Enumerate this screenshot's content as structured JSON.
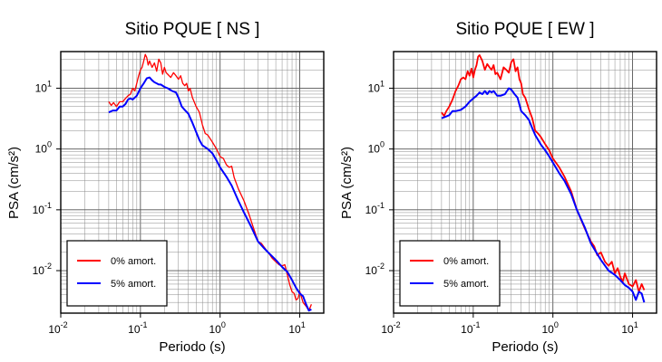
{
  "chart_data": [
    {
      "type": "line",
      "title": "Sitio PQUE [ NS ]",
      "xlabel": "Periodo (s)",
      "ylabel": "PSA (cm/s²)",
      "xscale": "log",
      "yscale": "log",
      "xlim": [
        0.01,
        20
      ],
      "ylim": [
        0.002,
        40
      ],
      "grid": true,
      "legend_position": "bottom-left",
      "x_ticks": [
        {
          "base": "10",
          "exp": "-2"
        },
        {
          "base": "10",
          "exp": "-1"
        },
        {
          "base": "10",
          "exp": "0"
        },
        {
          "base": "10",
          "exp": "1"
        }
      ],
      "y_ticks": [
        {
          "base": "10",
          "exp": "-2"
        },
        {
          "base": "10",
          "exp": "-1"
        },
        {
          "base": "10",
          "exp": "0"
        },
        {
          "base": "10",
          "exp": "1"
        }
      ],
      "series": [
        {
          "name": "0% amort.",
          "color": "#ff0000",
          "x": [
            0.04,
            0.043,
            0.046,
            0.05,
            0.055,
            0.06,
            0.065,
            0.07,
            0.075,
            0.08,
            0.085,
            0.09,
            0.095,
            0.1,
            0.105,
            0.11,
            0.115,
            0.12,
            0.125,
            0.13,
            0.14,
            0.15,
            0.16,
            0.17,
            0.18,
            0.19,
            0.2,
            0.21,
            0.22,
            0.24,
            0.26,
            0.28,
            0.3,
            0.32,
            0.34,
            0.36,
            0.38,
            0.4,
            0.42,
            0.45,
            0.5,
            0.55,
            0.6,
            0.65,
            0.7,
            0.8,
            0.9,
            1.0,
            1.1,
            1.2,
            1.3,
            1.4,
            1.5,
            1.7,
            2.0,
            2.3,
            2.6,
            3.0,
            3.3,
            3.6,
            4.0,
            4.5,
            5.0,
            5.5,
            6.0,
            6.5,
            7.0,
            7.5,
            8.0,
            8.5,
            9.0,
            9.5,
            10.0,
            11.0,
            12.0,
            13.0,
            14.0
          ],
          "y": [
            6.0,
            5.2,
            5.8,
            5.0,
            6.0,
            6.0,
            6.8,
            7.5,
            8.0,
            10.0,
            9.0,
            12.0,
            16.0,
            20.0,
            22.0,
            28.0,
            36.0,
            32.0,
            24.0,
            28.0,
            22.0,
            26.0,
            19.0,
            30.0,
            26.0,
            17.0,
            22.0,
            18.0,
            17.0,
            15.0,
            18.0,
            16.0,
            14.0,
            16.0,
            12.0,
            11.0,
            12.0,
            9.0,
            10.0,
            7.0,
            5.0,
            4.0,
            2.5,
            1.8,
            1.7,
            1.3,
            1.0,
            0.75,
            0.7,
            0.55,
            0.5,
            0.52,
            0.34,
            0.22,
            0.14,
            0.085,
            0.052,
            0.03,
            0.028,
            0.024,
            0.02,
            0.016,
            0.014,
            0.0125,
            0.012,
            0.0125,
            0.0085,
            0.0058,
            0.0045,
            0.0042,
            0.0033,
            0.0035,
            0.0045,
            0.003,
            0.0026,
            0.0022,
            0.0028
          ]
        },
        {
          "name": "5% amort.",
          "color": "#0000ff",
          "x": [
            0.04,
            0.045,
            0.05,
            0.055,
            0.06,
            0.065,
            0.07,
            0.075,
            0.08,
            0.09,
            0.1,
            0.11,
            0.12,
            0.13,
            0.14,
            0.15,
            0.16,
            0.17,
            0.18,
            0.2,
            0.22,
            0.25,
            0.28,
            0.3,
            0.33,
            0.36,
            0.4,
            0.45,
            0.5,
            0.55,
            0.6,
            0.7,
            0.8,
            0.9,
            1.0,
            1.2,
            1.4,
            1.7,
            2.0,
            2.5,
            3.0,
            3.5,
            4.0,
            5.0,
            6.0,
            7.0,
            8.0,
            9.0,
            10.0,
            11.0,
            12.0,
            13.0,
            14.0
          ],
          "y": [
            4.0,
            4.3,
            4.3,
            5.0,
            5.0,
            5.5,
            6.5,
            6.8,
            6.5,
            7.5,
            10.0,
            12.0,
            14.5,
            15.0,
            13.5,
            12.5,
            12.0,
            11.5,
            11.5,
            10.5,
            10.0,
            9.0,
            8.5,
            7.0,
            5.0,
            4.4,
            3.8,
            2.7,
            1.9,
            1.4,
            1.15,
            1.0,
            0.85,
            0.65,
            0.5,
            0.35,
            0.25,
            0.14,
            0.09,
            0.05,
            0.03,
            0.024,
            0.02,
            0.015,
            0.0115,
            0.0095,
            0.007,
            0.0052,
            0.0042,
            0.0038,
            0.0028,
            0.0022,
            0.0023
          ]
        }
      ]
    },
    {
      "type": "line",
      "title": "Sitio PQUE [ EW ]",
      "xlabel": "Periodo (s)",
      "ylabel": "PSA (cm/s²)",
      "xscale": "log",
      "yscale": "log",
      "xlim": [
        0.01,
        20
      ],
      "ylim": [
        0.002,
        40
      ],
      "grid": true,
      "legend_position": "bottom-left",
      "x_ticks": [
        {
          "base": "10",
          "exp": "-2"
        },
        {
          "base": "10",
          "exp": "-1"
        },
        {
          "base": "10",
          "exp": "0"
        },
        {
          "base": "10",
          "exp": "1"
        }
      ],
      "y_ticks": [
        {
          "base": "10",
          "exp": "-2"
        },
        {
          "base": "10",
          "exp": "-1"
        },
        {
          "base": "10",
          "exp": "0"
        },
        {
          "base": "10",
          "exp": "1"
        }
      ],
      "series": [
        {
          "name": "0% amort.",
          "color": "#ff0000",
          "x": [
            0.04,
            0.043,
            0.046,
            0.05,
            0.055,
            0.06,
            0.065,
            0.07,
            0.075,
            0.08,
            0.085,
            0.09,
            0.095,
            0.1,
            0.105,
            0.11,
            0.115,
            0.12,
            0.13,
            0.14,
            0.15,
            0.16,
            0.17,
            0.18,
            0.19,
            0.2,
            0.22,
            0.24,
            0.26,
            0.28,
            0.3,
            0.32,
            0.34,
            0.36,
            0.38,
            0.4,
            0.42,
            0.45,
            0.5,
            0.55,
            0.6,
            0.65,
            0.7,
            0.8,
            0.9,
            1.0,
            1.2,
            1.4,
            1.7,
            2.0,
            2.5,
            3.0,
            3.3,
            3.6,
            4.0,
            4.5,
            5.0,
            5.5,
            6.0,
            6.5,
            7.0,
            7.5,
            8.0,
            9.0,
            10.0,
            11.0,
            12.0,
            13.0,
            14.0
          ],
          "y": [
            4.0,
            3.5,
            4.2,
            5.0,
            6.5,
            9.0,
            11.0,
            14.0,
            15.0,
            14.0,
            19.0,
            16.0,
            21.0,
            15.0,
            20.0,
            24.0,
            33.0,
            35.0,
            28.0,
            20.0,
            25.0,
            22.0,
            20.0,
            24.0,
            17.0,
            18.0,
            14.0,
            22.0,
            20.0,
            18.0,
            27.0,
            30.0,
            19.0,
            22.0,
            14.0,
            12.0,
            8.0,
            7.0,
            4.5,
            3.2,
            2.0,
            1.8,
            1.6,
            1.2,
            0.95,
            0.7,
            0.5,
            0.35,
            0.2,
            0.1,
            0.05,
            0.03,
            0.025,
            0.018,
            0.02,
            0.014,
            0.012,
            0.014,
            0.009,
            0.011,
            0.008,
            0.0065,
            0.009,
            0.006,
            0.0055,
            0.007,
            0.0045,
            0.006,
            0.0048
          ]
        },
        {
          "name": "5% amort.",
          "color": "#0000ff",
          "x": [
            0.04,
            0.045,
            0.05,
            0.055,
            0.06,
            0.07,
            0.08,
            0.09,
            0.1,
            0.11,
            0.12,
            0.13,
            0.14,
            0.15,
            0.16,
            0.17,
            0.18,
            0.2,
            0.22,
            0.25,
            0.28,
            0.3,
            0.33,
            0.36,
            0.4,
            0.45,
            0.5,
            0.55,
            0.6,
            0.7,
            0.8,
            0.9,
            1.0,
            1.2,
            1.4,
            1.7,
            2.0,
            2.5,
            3.0,
            3.5,
            4.0,
            5.0,
            6.0,
            7.0,
            8.0,
            9.0,
            10.0,
            11.0,
            12.0,
            13.0,
            14.0
          ],
          "y": [
            3.2,
            3.4,
            3.6,
            4.2,
            4.2,
            4.4,
            5.0,
            6.0,
            6.8,
            7.5,
            8.5,
            8.0,
            9.0,
            8.0,
            9.0,
            8.5,
            9.0,
            7.5,
            7.5,
            8.0,
            10.0,
            9.5,
            8.0,
            7.0,
            4.2,
            3.6,
            3.0,
            2.2,
            1.7,
            1.2,
            0.95,
            0.75,
            0.6,
            0.4,
            0.3,
            0.18,
            0.1,
            0.052,
            0.028,
            0.02,
            0.015,
            0.01,
            0.0085,
            0.007,
            0.0058,
            0.0052,
            0.0045,
            0.0033,
            0.0045,
            0.0042,
            0.003
          ]
        }
      ]
    }
  ]
}
